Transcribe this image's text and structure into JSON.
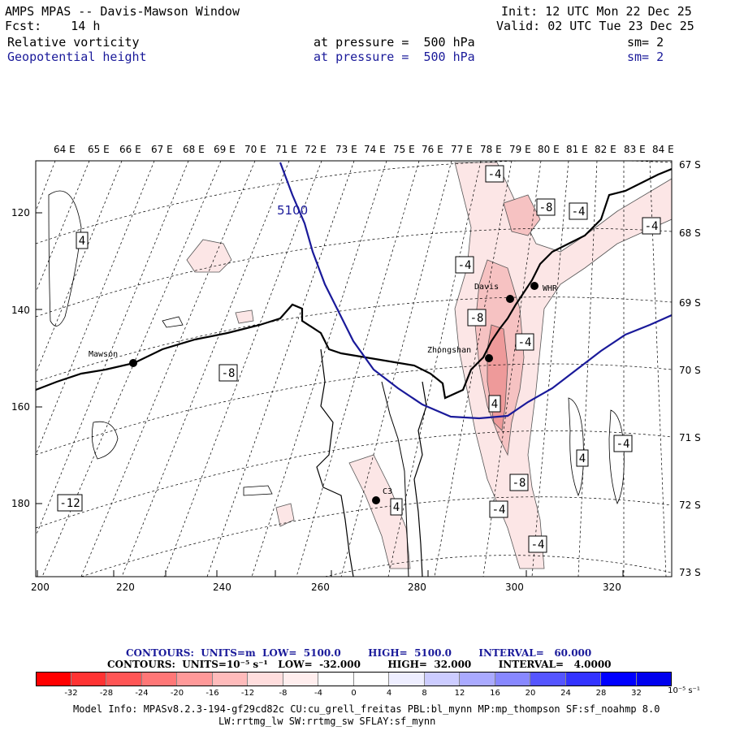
{
  "header": {
    "title": "AMPS MPAS -- Davis-Mawson Window",
    "fcst": "Fcst:    14 h",
    "init": "Init: 12 UTC Mon 22 Dec 25",
    "valid": "Valid: 02 UTC Tue 23 Dec 25",
    "field1": {
      "name": "Relative vorticity",
      "level": "at pressure =  500 hPa",
      "sm": "sm= 2"
    },
    "field2": {
      "name": "Geopotential height",
      "level": "at pressure =  500 hPa",
      "sm": "sm= 2"
    }
  },
  "map": {
    "top_lon_labels": [
      "64 E",
      "65 E",
      "66 E",
      "67 E",
      "68 E",
      "69 E",
      "70 E",
      "71 E",
      "72 E",
      "73 E",
      "74 E",
      "75 E",
      "76 E",
      "77 E",
      "78 E",
      "79 E",
      "80 E",
      "81 E",
      "82 E",
      "83 E",
      "84 E"
    ],
    "right_lat_labels": [
      "67 S",
      "68 S",
      "69 S",
      "70 S",
      "71 S",
      "72 S",
      "73 S"
    ],
    "x_grid_labels": [
      "200",
      "220",
      "240",
      "260",
      "280",
      "300",
      "320"
    ],
    "y_grid_labels": [
      "120",
      "140",
      "160",
      "180"
    ],
    "stations": [
      {
        "name": "Mawson"
      },
      {
        "name": "Davis"
      },
      {
        "name": "WHR"
      },
      {
        "name": "Zhongshan"
      },
      {
        "name": "C3"
      }
    ],
    "height_contour_label": "5100",
    "vorticity_labels": [
      "-4",
      "-8",
      "-4",
      "-4",
      "-4",
      "4",
      "-8",
      "-4",
      "-8",
      "4",
      "-12",
      "4",
      "-4",
      "-8",
      "-4",
      "4",
      "-4"
    ],
    "colors": {
      "height_contour": "#1a1a9a",
      "coast": "#000000",
      "pos_vort_light": "#fce6e6",
      "pos_vort_mid": "#f6c2c2",
      "pos_vort_dark": "#ee9a9a"
    }
  },
  "contour_info": {
    "line1": "CONTOURS:  UNITS=m  LOW=  5100.0        HIGH=  5100.0        INTERVAL=   60.000",
    "line2": "CONTOURS:  UNITS=10⁻⁵ s⁻¹   LOW=  -32.000        HIGH=  32.000        INTERVAL=   4.0000"
  },
  "colorbar": {
    "colors": [
      "#ff0000",
      "#ff3333",
      "#ff5555",
      "#ff7777",
      "#ff9999",
      "#ffbbbb",
      "#ffdddd",
      "#ffeeee",
      "#ffffff",
      "#ffffff",
      "#eeeeff",
      "#ccccff",
      "#aaaaff",
      "#8888ff",
      "#5555ff",
      "#3333ff",
      "#0000ff",
      "#0000ee"
    ],
    "labels": [
      "-32",
      "-28",
      "-24",
      "-20",
      "-16",
      "-12",
      "-8",
      "-4",
      "0",
      "4",
      "8",
      "12",
      "16",
      "20",
      "24",
      "28",
      "32"
    ],
    "unit": "10⁻⁵ s⁻¹"
  },
  "footer": {
    "line1": "Model Info: MPASv8.2.3-194-gf29cd82c CU:cu_grell_freitas PBL:bl_mynn MP:mp_thompson SF:sf_noahmp 8.0",
    "line2": "LW:rrtmg_lw SW:rrtmg_sw SFLAY:sf_mynn"
  }
}
